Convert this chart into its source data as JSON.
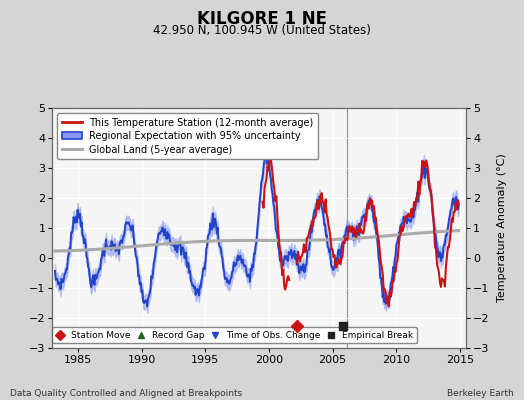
{
  "title": "KILGORE 1 NE",
  "subtitle": "42.950 N, 100.945 W (United States)",
  "ylabel": "Temperature Anomaly (°C)",
  "xlabel_left": "Data Quality Controlled and Aligned at Breakpoints",
  "xlabel_right": "Berkeley Earth",
  "ylim": [
    -3,
    5
  ],
  "xlim": [
    1983.0,
    2015.5
  ],
  "xticks": [
    1985,
    1990,
    1995,
    2000,
    2005,
    2010,
    2015
  ],
  "yticks": [
    -3,
    -2,
    -1,
    0,
    1,
    2,
    3,
    4,
    5
  ],
  "fig_bg_color": "#d5d5d5",
  "plot_bg_color": "#f5f5f5",
  "grid_color": "white",
  "station_move_x": 2002.2,
  "station_move_y": -2.25,
  "empirical_break_x": 2005.8,
  "empirical_break_y": -2.25,
  "vertical_line_x": 2006.1,
  "red_start_year": 1999.5,
  "regional_color": "#2244cc",
  "station_color": "#cc1111",
  "global_color": "#aaaaaa",
  "band_color": "#8899ee",
  "band_alpha": 0.5
}
